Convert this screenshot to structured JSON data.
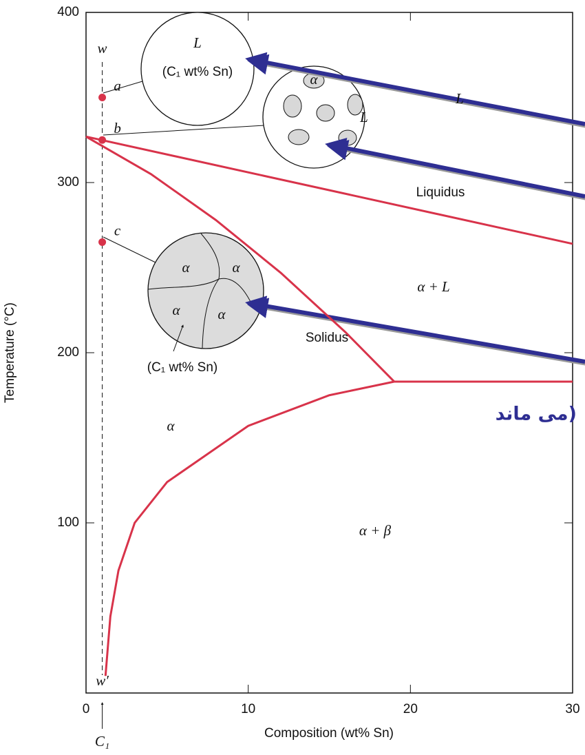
{
  "chart_data": {
    "type": "phase-diagram",
    "xlabel": "Composition (wt% Sn)",
    "ylabel": "Temperature (°C)",
    "xlim": [
      0,
      30
    ],
    "ylim": [
      0,
      400
    ],
    "xticks": [
      0,
      10,
      20,
      30
    ],
    "yticks": [
      100,
      200,
      300,
      400
    ],
    "color": "#d8334a",
    "curves": [
      {
        "x": [
          0,
          30
        ],
        "y": [
          327,
          264
        ]
      },
      {
        "x": [
          0,
          4,
          8,
          12,
          16,
          19
        ],
        "y": [
          327,
          305,
          278,
          247,
          212,
          183
        ]
      },
      {
        "x": [
          19,
          15,
          10,
          5,
          3,
          2,
          1.5,
          1.2
        ],
        "y": [
          183,
          175,
          157,
          124,
          100,
          72,
          45,
          10
        ]
      },
      {
        "x": [
          19,
          30
        ],
        "y": [
          183,
          183
        ]
      }
    ],
    "points": {
      "x": [
        1,
        1,
        1
      ],
      "y": [
        350,
        325,
        265
      ],
      "labels": [
        "a",
        "b",
        "c"
      ]
    },
    "c1": {
      "value": 1,
      "label": "C₁",
      "top_label": "w",
      "bottom_label": "w′"
    },
    "region_labels": [
      "L",
      "α + L",
      "α",
      "α + β"
    ],
    "curve_labels": [
      "Liquidus",
      "Solidus"
    ]
  },
  "insets": [
    {
      "labels": [
        "L",
        "(C₁ wt% Sn)"
      ]
    },
    {
      "labels": [
        "α",
        "L"
      ]
    },
    {
      "labels": [
        "α",
        "α",
        "α",
        "α",
        "(C₁ wt% Sn)"
      ]
    }
  ],
  "overlay_text": "می ماند)"
}
